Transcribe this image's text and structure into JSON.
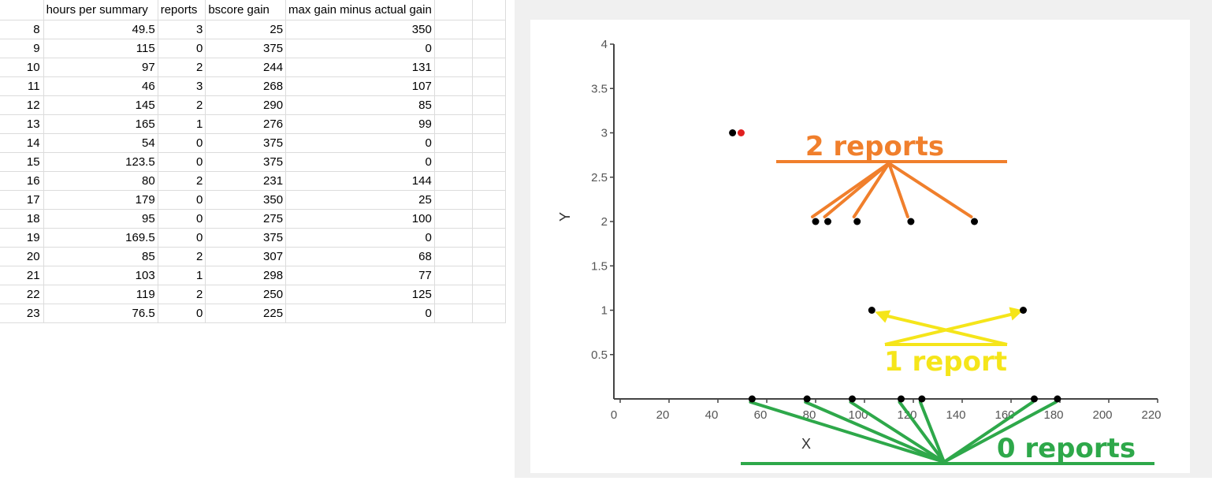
{
  "spreadsheet": {
    "headers": [
      "",
      "hours per summary",
      "reports",
      "bscore gain",
      "max gain minus actual gain",
      "",
      ""
    ],
    "rows": [
      [
        "8",
        "49.5",
        "3",
        "25",
        "350"
      ],
      [
        "9",
        "115",
        "0",
        "375",
        "0"
      ],
      [
        "10",
        "97",
        "2",
        "244",
        "131"
      ],
      [
        "11",
        "46",
        "3",
        "268",
        "107"
      ],
      [
        "12",
        "145",
        "2",
        "290",
        "85"
      ],
      [
        "13",
        "165",
        "1",
        "276",
        "99"
      ],
      [
        "14",
        "54",
        "0",
        "375",
        "0"
      ],
      [
        "15",
        "123.5",
        "0",
        "375",
        "0"
      ],
      [
        "16",
        "80",
        "2",
        "231",
        "144"
      ],
      [
        "17",
        "179",
        "0",
        "350",
        "25"
      ],
      [
        "18",
        "95",
        "0",
        "275",
        "100"
      ],
      [
        "19",
        "169.5",
        "0",
        "375",
        "0"
      ],
      [
        "20",
        "85",
        "2",
        "307",
        "68"
      ],
      [
        "21",
        "103",
        "1",
        "298",
        "77"
      ],
      [
        "22",
        "119",
        "2",
        "250",
        "125"
      ],
      [
        "23",
        "76.5",
        "0",
        "225",
        "0"
      ]
    ]
  },
  "chart_data": {
    "type": "scatter",
    "xlabel": "X",
    "ylabel": "Y",
    "xlim": [
      0,
      220
    ],
    "ylim": [
      0,
      4
    ],
    "xticks": [
      "0",
      "20",
      "40",
      "60",
      "80",
      "100",
      "120",
      "140",
      "160",
      "180",
      "200",
      "220"
    ],
    "yticks": [
      "0.5",
      "1",
      "1.5",
      "2",
      "2.5",
      "3",
      "3.5",
      "4"
    ],
    "points": [
      {
        "x": 46,
        "y": 3,
        "color": "#000000"
      },
      {
        "x": 49.5,
        "y": 3,
        "color": "#e02020"
      },
      {
        "x": 80,
        "y": 2
      },
      {
        "x": 85,
        "y": 2
      },
      {
        "x": 97,
        "y": 2
      },
      {
        "x": 119,
        "y": 2
      },
      {
        "x": 145,
        "y": 2
      },
      {
        "x": 103,
        "y": 1
      },
      {
        "x": 165,
        "y": 1
      },
      {
        "x": 54,
        "y": 0
      },
      {
        "x": 76.5,
        "y": 0
      },
      {
        "x": 95,
        "y": 0
      },
      {
        "x": 115,
        "y": 0
      },
      {
        "x": 123.5,
        "y": 0
      },
      {
        "x": 169.5,
        "y": 0
      },
      {
        "x": 179,
        "y": 0
      }
    ],
    "annotations": [
      {
        "label": "2 reports",
        "color": "#f07f2c"
      },
      {
        "label": "1 report",
        "color": "#f5e51a"
      },
      {
        "label": "0 reports",
        "color": "#2ea84a"
      }
    ]
  }
}
